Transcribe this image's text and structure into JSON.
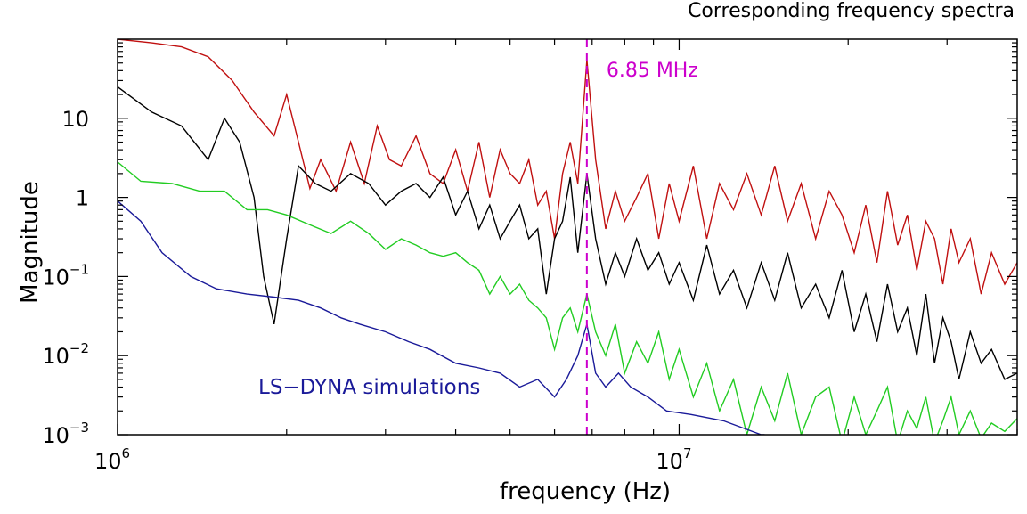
{
  "chart_data": {
    "type": "line",
    "title": "Corresponding frequency spectra",
    "xlabel": "frequency (Hz)",
    "ylabel": "Magnitude",
    "x_scale": "log",
    "y_scale": "log",
    "xlim": [
      1000000,
      40000000
    ],
    "ylim": [
      0.001,
      100
    ],
    "x_ticks": [
      {
        "value": 1000000,
        "base": "10",
        "exp": "6"
      },
      {
        "value": 10000000,
        "base": "10",
        "exp": "7"
      }
    ],
    "y_ticks": [
      {
        "value": 10,
        "base": "10",
        "exp": ""
      },
      {
        "value": 1,
        "base": "1",
        "exp": ""
      },
      {
        "value": 0.1,
        "base": "10",
        "exp": "−1"
      },
      {
        "value": 0.01,
        "base": "10",
        "exp": "−2"
      },
      {
        "value": 0.001,
        "base": "10",
        "exp": "−3"
      }
    ],
    "grid": false,
    "annotations": [
      {
        "text": "6.85 MHz",
        "x": 6850000,
        "color": "#cc00cc",
        "style": "dashed-vertical-line"
      },
      {
        "text": "LS−DYNA simulations",
        "color": "#1a1a99"
      }
    ],
    "series": [
      {
        "color": "#c01010",
        "x": [
          1000000.0,
          1150000.0,
          1300000.0,
          1450000.0,
          1600000.0,
          1750000.0,
          1900000.0,
          2000000.0,
          2100000.0,
          2200000.0,
          2300000.0,
          2450000.0,
          2600000.0,
          2750000.0,
          2900000.0,
          3050000.0,
          3200000.0,
          3400000.0,
          3600000.0,
          3800000.0,
          4000000.0,
          4200000.0,
          4400000.0,
          4600000.0,
          4800000.0,
          5000000.0,
          5200000.0,
          5400000.0,
          5600000.0,
          5800000.0,
          6000000.0,
          6200000.0,
          6400000.0,
          6600000.0,
          6850000.0,
          7100000.0,
          7400000.0,
          7700000.0,
          8000000.0,
          8400000.0,
          8800000.0,
          9200000.0,
          9600000.0,
          10000000.0,
          10600000.0,
          11200000.0,
          11800000.0,
          12500000.0,
          13200000.0,
          14000000.0,
          14800000.0,
          15600000.0,
          16500000.0,
          17500000.0,
          18500000.0,
          19500000.0,
          20500000.0,
          21500000.0,
          22500000.0,
          23500000.0,
          24500000.0,
          25500000.0,
          26500000.0,
          27500000.0,
          28500000.0,
          29500000.0,
          30500000.0,
          31500000.0,
          33000000.0,
          34500000.0,
          36000000.0,
          38000000.0,
          40000000.0
        ],
        "values": [
          100,
          90,
          80,
          60,
          30,
          12,
          6,
          20,
          5,
          1.3,
          3,
          1.2,
          5,
          1.5,
          8,
          3,
          2.5,
          6,
          2,
          1.5,
          4,
          1.2,
          5,
          1,
          4,
          2,
          1.5,
          3,
          0.8,
          1.2,
          0.3,
          2,
          5,
          1.5,
          55,
          3,
          0.4,
          1.2,
          0.5,
          1,
          2,
          0.3,
          1.5,
          0.5,
          2.5,
          0.3,
          1.5,
          0.7,
          2,
          0.6,
          2.5,
          0.5,
          1.5,
          0.3,
          1.2,
          0.6,
          0.2,
          0.8,
          0.15,
          1.2,
          0.25,
          0.6,
          0.12,
          0.5,
          0.3,
          0.08,
          0.4,
          0.15,
          0.3,
          0.06,
          0.2,
          0.08,
          0.15
        ]
      },
      {
        "color": "#000000",
        "x": [
          1000000.0,
          1150000.0,
          1300000.0,
          1450000.0,
          1550000.0,
          1650000.0,
          1750000.0,
          1820000.0,
          1900000.0,
          2000000.0,
          2100000.0,
          2250000.0,
          2400000.0,
          2600000.0,
          2800000.0,
          3000000.0,
          3200000.0,
          3400000.0,
          3600000.0,
          3800000.0,
          4000000.0,
          4200000.0,
          4400000.0,
          4600000.0,
          4800000.0,
          5000000.0,
          5200000.0,
          5400000.0,
          5600000.0,
          5800000.0,
          6000000.0,
          6200000.0,
          6400000.0,
          6600000.0,
          6850000.0,
          7100000.0,
          7400000.0,
          7700000.0,
          8000000.0,
          8400000.0,
          8800000.0,
          9200000.0,
          9600000.0,
          10000000.0,
          10600000.0,
          11200000.0,
          11800000.0,
          12500000.0,
          13200000.0,
          14000000.0,
          14800000.0,
          15600000.0,
          16500000.0,
          17500000.0,
          18500000.0,
          19500000.0,
          20500000.0,
          21500000.0,
          22500000.0,
          23500000.0,
          24500000.0,
          25500000.0,
          26500000.0,
          27500000.0,
          28500000.0,
          29500000.0,
          30500000.0,
          31500000.0,
          33000000.0,
          34500000.0,
          36000000.0,
          38000000.0,
          40000000.0
        ],
        "values": [
          25,
          12,
          8,
          3,
          10,
          5,
          1,
          0.1,
          0.025,
          0.3,
          2.5,
          1.5,
          1.2,
          2,
          1.5,
          0.8,
          1.2,
          1.5,
          1,
          1.8,
          0.6,
          1.2,
          0.4,
          0.8,
          0.3,
          0.5,
          0.8,
          0.3,
          0.4,
          0.06,
          0.3,
          0.5,
          1.8,
          0.2,
          2,
          0.3,
          0.08,
          0.2,
          0.1,
          0.3,
          0.12,
          0.2,
          0.08,
          0.15,
          0.05,
          0.25,
          0.06,
          0.12,
          0.04,
          0.15,
          0.05,
          0.2,
          0.04,
          0.08,
          0.03,
          0.12,
          0.02,
          0.06,
          0.015,
          0.08,
          0.02,
          0.04,
          0.01,
          0.06,
          0.008,
          0.03,
          0.015,
          0.005,
          0.02,
          0.008,
          0.012,
          0.005,
          0.006
        ]
      },
      {
        "color": "#22cc22",
        "x": [
          1000000.0,
          1100000.0,
          1250000.0,
          1400000.0,
          1550000.0,
          1700000.0,
          1850000.0,
          2000000.0,
          2200000.0,
          2400000.0,
          2600000.0,
          2800000.0,
          3000000.0,
          3200000.0,
          3400000.0,
          3600000.0,
          3800000.0,
          4000000.0,
          4200000.0,
          4400000.0,
          4600000.0,
          4800000.0,
          5000000.0,
          5200000.0,
          5400000.0,
          5600000.0,
          5800000.0,
          6000000.0,
          6200000.0,
          6400000.0,
          6600000.0,
          6850000.0,
          7100000.0,
          7400000.0,
          7700000.0,
          8000000.0,
          8400000.0,
          8800000.0,
          9200000.0,
          9600000.0,
          10000000.0,
          10600000.0,
          11200000.0,
          11800000.0,
          12500000.0,
          13200000.0,
          14000000.0,
          14800000.0,
          15600000.0,
          16500000.0,
          17500000.0,
          18500000.0,
          19500000.0,
          20500000.0,
          21500000.0,
          22500000.0,
          23500000.0,
          24500000.0,
          25500000.0,
          26500000.0,
          27500000.0,
          28500000.0,
          29500000.0,
          30500000.0,
          31500000.0,
          33000000.0,
          34500000.0,
          36000000.0,
          38000000.0,
          40000000.0
        ],
        "values": [
          2.8,
          1.6,
          1.5,
          1.2,
          1.2,
          0.7,
          0.7,
          0.6,
          0.45,
          0.35,
          0.5,
          0.35,
          0.22,
          0.3,
          0.25,
          0.2,
          0.18,
          0.2,
          0.15,
          0.12,
          0.06,
          0.1,
          0.06,
          0.08,
          0.05,
          0.04,
          0.03,
          0.012,
          0.03,
          0.04,
          0.02,
          0.06,
          0.02,
          0.01,
          0.025,
          0.006,
          0.015,
          0.008,
          0.02,
          0.005,
          0.012,
          0.003,
          0.008,
          0.002,
          0.005,
          0.001,
          0.004,
          0.0015,
          0.006,
          0.001,
          0.003,
          0.004,
          0.0008,
          0.003,
          0.001,
          0.002,
          0.004,
          0.0008,
          0.002,
          0.0012,
          0.003,
          0.0008,
          0.0015,
          0.003,
          0.001,
          0.002,
          0.0009,
          0.0014,
          0.0011,
          0.0016
        ]
      },
      {
        "color": "#1a1a99",
        "x": [
          1000000.0,
          1100000.0,
          1200000.0,
          1350000.0,
          1500000.0,
          1700000.0,
          1900000.0,
          2100000.0,
          2300000.0,
          2500000.0,
          2700000.0,
          3000000.0,
          3300000.0,
          3600000.0,
          4000000.0,
          4400000.0,
          4800000.0,
          5200000.0,
          5600000.0,
          6000000.0,
          6300000.0,
          6600000.0,
          6850000.0,
          7100000.0,
          7400000.0,
          7800000.0,
          8200000.0,
          8800000.0,
          9500000.0,
          10500000.0,
          12000000.0,
          14000000.0,
          14200000.0
        ],
        "values": [
          0.9,
          0.5,
          0.2,
          0.1,
          0.07,
          0.06,
          0.055,
          0.05,
          0.04,
          0.03,
          0.025,
          0.02,
          0.015,
          0.012,
          0.008,
          0.007,
          0.006,
          0.004,
          0.005,
          0.003,
          0.005,
          0.01,
          0.025,
          0.006,
          0.004,
          0.006,
          0.004,
          0.003,
          0.002,
          0.0018,
          0.0015,
          0.001,
          0.001
        ]
      }
    ]
  }
}
